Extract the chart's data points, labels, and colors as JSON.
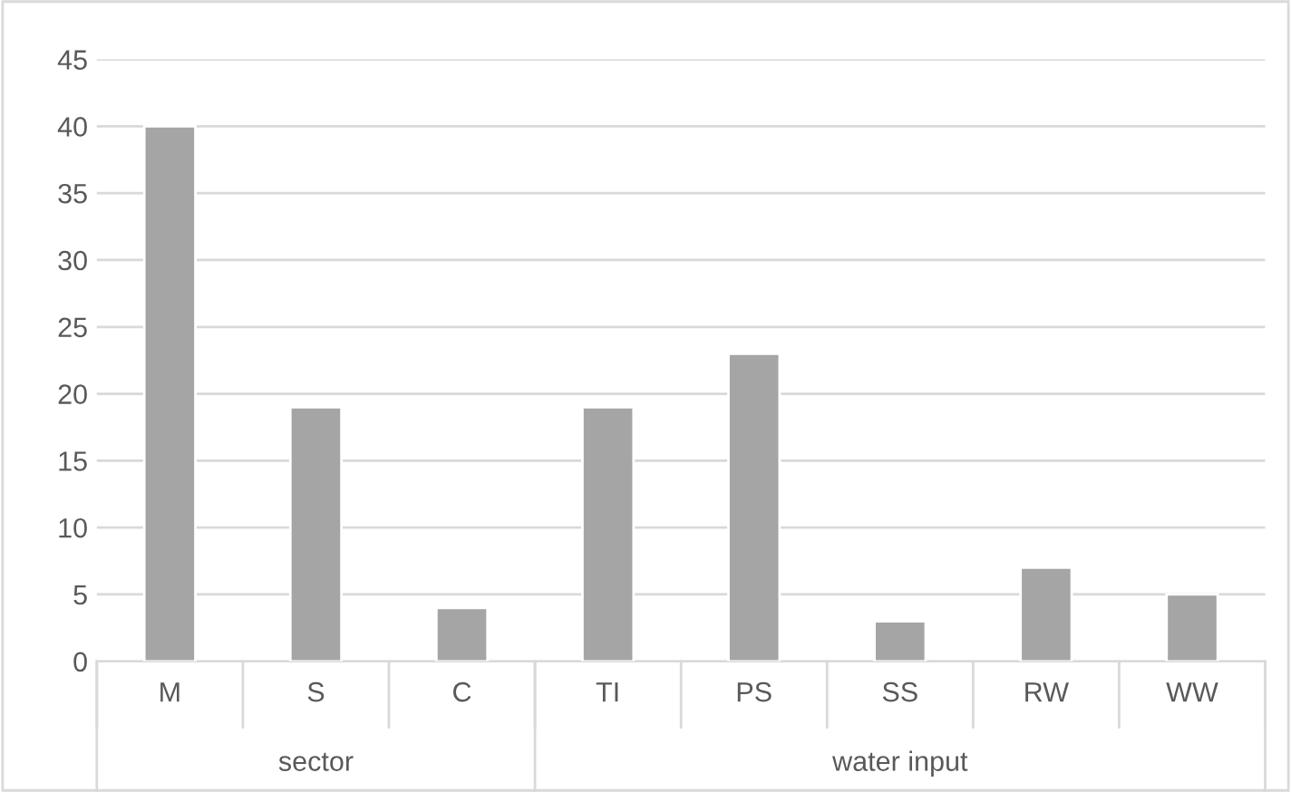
{
  "chart_data": {
    "type": "bar",
    "categories": [
      "M",
      "S",
      "C",
      "TI",
      "PS",
      "SS",
      "RW",
      "WW"
    ],
    "values": [
      40,
      19,
      4,
      19,
      23,
      3,
      7,
      5
    ],
    "color": "#a5a5a5",
    "ylim": [
      0,
      45
    ],
    "yticks": [
      0,
      5,
      10,
      15,
      20,
      25,
      30,
      35,
      40,
      45
    ],
    "grid": "y",
    "annotations": [
      "sector",
      "water input"
    ]
  }
}
